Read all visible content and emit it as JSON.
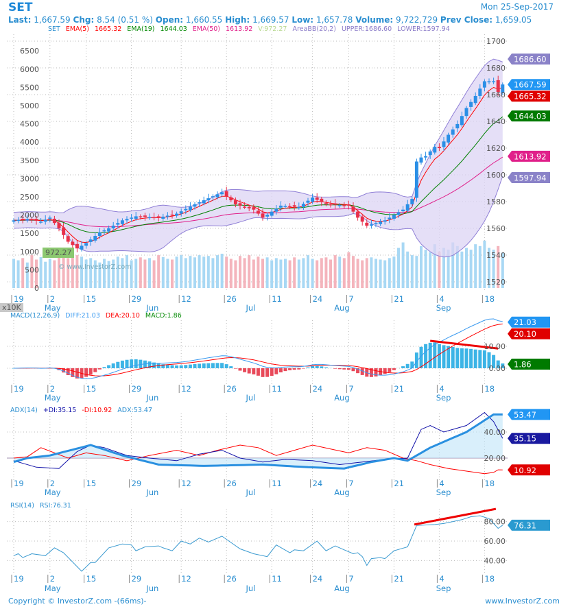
{
  "header": {
    "symbol": "SET",
    "date": "Mon 25-Sep-2017",
    "last_label": "Last:",
    "last": "1,667.59",
    "chg_label": "Chg:",
    "chg": "8.54 (0.51 %)",
    "open_label": "Open:",
    "open": "1,660.55",
    "high_label": "High:",
    "high": "1,669.57",
    "low_label": "Low:",
    "low": "1,657.78",
    "volume_label": "Volume:",
    "volume": "9,722,729",
    "prev_close_label": "Prev Close:",
    "prev_close": "1,659.05"
  },
  "footer": {
    "copyright": "Copyright © InvestorZ.com  -(66ms)-",
    "site": "www.InvestorZ.com"
  },
  "watermark": "© www.InvestorZ.com",
  "colors": {
    "up": "#2b8fe6",
    "down": "#e8304a",
    "ema5": "#ff0000",
    "ema19": "#008000",
    "ema50": "#e0208a",
    "bb_fill": "#dcd4f4",
    "bb_line": "#8f7fd6",
    "accent": "#2a8ed0"
  },
  "chart_data": {
    "type": "candlestick",
    "bars": 109,
    "x_ticks": {
      "indices": [
        0,
        8,
        16,
        26,
        37,
        47,
        57,
        66,
        74,
        84,
        94,
        104
      ],
      "labels": [
        "19",
        "2",
        "15",
        "29",
        "12",
        "26",
        "11",
        "24",
        "7",
        "21",
        "4",
        "18"
      ]
    },
    "months": {
      "indices": [
        8,
        30.5,
        52.5,
        72,
        94.5
      ],
      "labels": [
        "May",
        "Jun",
        "Jul",
        "Aug",
        "Sep"
      ]
    },
    "close_keypoints": [
      [
        0,
        1566
      ],
      [
        3,
        1567
      ],
      [
        6,
        1565
      ],
      [
        8,
        1568
      ],
      [
        10,
        1560
      ],
      [
        12,
        1550
      ],
      [
        14,
        1545
      ],
      [
        16,
        1549
      ],
      [
        19,
        1557
      ],
      [
        21,
        1560
      ],
      [
        24,
        1566
      ],
      [
        27,
        1569
      ],
      [
        32,
        1568
      ],
      [
        36,
        1571
      ],
      [
        40,
        1578
      ],
      [
        44,
        1584
      ],
      [
        46,
        1587
      ],
      [
        49,
        1578
      ],
      [
        53,
        1574
      ],
      [
        55,
        1568
      ],
      [
        59,
        1577
      ],
      [
        63,
        1576
      ],
      [
        66,
        1583
      ],
      [
        69,
        1578
      ],
      [
        74,
        1577
      ],
      [
        76,
        1568
      ],
      [
        78,
        1562
      ],
      [
        82,
        1566
      ],
      [
        86,
        1574
      ],
      [
        88,
        1582
      ],
      [
        89,
        1610
      ],
      [
        90,
        1613
      ],
      [
        91,
        1614
      ],
      [
        93,
        1621
      ],
      [
        94,
        1620
      ],
      [
        96,
        1630
      ],
      [
        98,
        1638
      ],
      [
        100,
        1650
      ],
      [
        102,
        1659
      ],
      [
        104,
        1670
      ],
      [
        106,
        1670
      ],
      [
        107,
        1662
      ],
      [
        108,
        1667.59
      ]
    ],
    "volume_x10k": [
      800,
      760,
      820,
      700,
      900,
      780,
      850,
      720,
      800,
      760,
      880,
      950,
      820,
      1000,
      900,
      860,
      780,
      820,
      760,
      700,
      800,
      740,
      780,
      860,
      820,
      900,
      760,
      800,
      840,
      780,
      820,
      760,
      900,
      850,
      800,
      780,
      860,
      900,
      820,
      880,
      840,
      900,
      860,
      880,
      820,
      900,
      940,
      860,
      800,
      760,
      880,
      820,
      900,
      780,
      860,
      800,
      840,
      760,
      820,
      780,
      800,
      760,
      840,
      780,
      820,
      900,
      800,
      760,
      820,
      840,
      780,
      900,
      860,
      820,
      980,
      880,
      800,
      760,
      820,
      840,
      800,
      780,
      760,
      820,
      860,
      1100,
      1250,
      1000,
      900,
      880,
      1150,
      1050,
      980,
      1200,
      1000,
      1100,
      1050,
      1250,
      1150,
      1000,
      1100,
      1050,
      1200,
      1150,
      1300,
      1100,
      1050,
      1150,
      972.27
    ],
    "main": {
      "legend": {
        "symbol": "SET",
        "ema5_label": "EMA(5)",
        "ema5": "1665.32",
        "ema19_label": "EMA(19)",
        "ema19": "1644.03",
        "ema50_label": "EMA(50)",
        "ema50": "1613.92",
        "vol": "V:972.27",
        "bb_label": "AreaBB(20,2)",
        "upper": "UPPER:1686.60",
        "lower": "LOWER:1597.94"
      },
      "price_ticks": [
        1520,
        1540,
        1560,
        1580,
        1600,
        1620,
        1640,
        1660,
        1680,
        1700
      ],
      "price_range": [
        1520,
        1700
      ],
      "volume_ticks": [
        0,
        500,
        1000,
        1500,
        2000,
        2500,
        3000,
        3500,
        4000,
        4500,
        5000,
        5500,
        6000,
        6500
      ],
      "volume_unit": "x10K",
      "badges": [
        {
          "v": 1686.6,
          "t": "1686.60",
          "c": "#8a82c8"
        },
        {
          "v": 1667.59,
          "t": "1667.59",
          "c": "#2196f3"
        },
        {
          "v": 1665.32,
          "t": "1665.32",
          "c": "#e00000"
        },
        {
          "v": 1644.03,
          "t": "1644.03",
          "c": "#007a00"
        },
        {
          "v": 1613.92,
          "t": "1613.92",
          "c": "#e0208a"
        },
        {
          "v": 1597.94,
          "t": "1597.94",
          "c": "#8a82c8"
        }
      ],
      "vol_badge": "972.27"
    },
    "macd": {
      "legend": {
        "name": "MACD(12,26,9)",
        "diff": "DIFF:21.03",
        "dea": "DEA:20.10",
        "macd": "MACD:1.86"
      },
      "ticks": [
        0,
        10
      ],
      "tick_labels": [
        "0.00",
        "10.00"
      ],
      "badges": [
        {
          "v": 21.03,
          "t": "21.03",
          "c": "#2196f3"
        },
        {
          "v": 20.1,
          "t": "20.10",
          "c": "#e00000"
        },
        {
          "v": 1.86,
          "t": "1.86",
          "c": "#007a00"
        }
      ],
      "trendline": [
        [
          92,
          12.5
        ],
        [
          107,
          9
        ]
      ]
    },
    "adx": {
      "legend": {
        "name": "ADX(14)",
        "pdi": "+DI:35.15",
        "mdi": "-DI:10.92",
        "adx": "ADX:53.47"
      },
      "ticks": [
        20,
        40
      ],
      "tick_labels": [
        "20.00",
        "40.00"
      ],
      "pdi": [
        [
          0,
          18
        ],
        [
          5,
          13
        ],
        [
          10,
          12
        ],
        [
          14,
          25
        ],
        [
          17,
          30
        ],
        [
          20,
          28
        ],
        [
          25,
          22
        ],
        [
          30,
          20
        ],
        [
          36,
          18
        ],
        [
          41,
          23
        ],
        [
          46,
          26
        ],
        [
          50,
          20
        ],
        [
          55,
          17
        ],
        [
          60,
          19
        ],
        [
          66,
          18
        ],
        [
          72,
          15
        ],
        [
          77,
          17
        ],
        [
          82,
          19
        ],
        [
          87,
          20
        ],
        [
          90,
          42
        ],
        [
          92,
          45
        ],
        [
          95,
          40
        ],
        [
          100,
          45
        ],
        [
          104,
          55
        ],
        [
          106,
          48
        ],
        [
          108,
          35.15
        ]
      ],
      "mdi": [
        [
          0,
          20
        ],
        [
          3,
          21
        ],
        [
          6,
          28
        ],
        [
          9,
          24
        ],
        [
          12,
          20
        ],
        [
          16,
          24
        ],
        [
          20,
          22
        ],
        [
          25,
          18
        ],
        [
          30,
          22
        ],
        [
          36,
          26
        ],
        [
          41,
          22
        ],
        [
          45,
          26
        ],
        [
          50,
          30
        ],
        [
          54,
          28
        ],
        [
          58,
          22
        ],
        [
          62,
          26
        ],
        [
          66,
          30
        ],
        [
          70,
          27
        ],
        [
          74,
          24
        ],
        [
          78,
          28
        ],
        [
          82,
          26
        ],
        [
          86,
          20
        ],
        [
          89,
          18
        ],
        [
          92,
          15
        ],
        [
          96,
          12
        ],
        [
          100,
          10
        ],
        [
          104,
          8
        ],
        [
          106,
          9
        ],
        [
          107,
          11
        ],
        [
          108,
          10.92
        ]
      ],
      "adx": [
        [
          0,
          17
        ],
        [
          3,
          20
        ],
        [
          8,
          22
        ],
        [
          17,
          30
        ],
        [
          24,
          22
        ],
        [
          32,
          15
        ],
        [
          42,
          14
        ],
        [
          55,
          15
        ],
        [
          65,
          13
        ],
        [
          73,
          12
        ],
        [
          79,
          17
        ],
        [
          84,
          20
        ],
        [
          87,
          18
        ],
        [
          92,
          28
        ],
        [
          100,
          40
        ],
        [
          106,
          53.5
        ],
        [
          108,
          53.47
        ]
      ],
      "badges": [
        {
          "v": 53.47,
          "t": "53.47",
          "c": "#2196f3"
        },
        {
          "v": 35.15,
          "t": "35.15",
          "c": "#1a1aa0"
        },
        {
          "v": 10.92,
          "t": "10.92",
          "c": "#e00000"
        }
      ]
    },
    "rsi": {
      "legend": {
        "name": "RSI(14)",
        "value": "RSI:76.31"
      },
      "ticks": [
        40,
        60,
        80
      ],
      "tick_labels": [
        "40.00",
        "60.00",
        "80.00"
      ],
      "series": [
        [
          0,
          45
        ],
        [
          1,
          47
        ],
        [
          2,
          43
        ],
        [
          4,
          47
        ],
        [
          7,
          45
        ],
        [
          9,
          53
        ],
        [
          11,
          48
        ],
        [
          15,
          29
        ],
        [
          17,
          38
        ],
        [
          18,
          38
        ],
        [
          21,
          53
        ],
        [
          24,
          57
        ],
        [
          26,
          56
        ],
        [
          27,
          50
        ],
        [
          29,
          54
        ],
        [
          32,
          55
        ],
        [
          33,
          53
        ],
        [
          35,
          50
        ],
        [
          37,
          60
        ],
        [
          39,
          57
        ],
        [
          41,
          63
        ],
        [
          43,
          59
        ],
        [
          46,
          65
        ],
        [
          50,
          52
        ],
        [
          53,
          47
        ],
        [
          56,
          44
        ],
        [
          58,
          56
        ],
        [
          61,
          48
        ],
        [
          62,
          51
        ],
        [
          64,
          50
        ],
        [
          67,
          60
        ],
        [
          69,
          50
        ],
        [
          71,
          55
        ],
        [
          73,
          51
        ],
        [
          75,
          47
        ],
        [
          76,
          48
        ],
        [
          77,
          44
        ],
        [
          78,
          35
        ],
        [
          79,
          42
        ],
        [
          81,
          43
        ],
        [
          82,
          42
        ],
        [
          84,
          50
        ],
        [
          87,
          54
        ],
        [
          88,
          65
        ],
        [
          89,
          76
        ],
        [
          93,
          77
        ],
        [
          95,
          78
        ],
        [
          97,
          80
        ],
        [
          99,
          82
        ],
        [
          101,
          85
        ],
        [
          103,
          86
        ],
        [
          105,
          83
        ],
        [
          107,
          73
        ],
        [
          108,
          76.31
        ]
      ],
      "badge": {
        "v": 76.31,
        "t": "76.31",
        "c": "#2a9ad0"
      },
      "trendline": [
        [
          88.5,
          77
        ],
        [
          106.5,
          93
        ]
      ]
    }
  }
}
